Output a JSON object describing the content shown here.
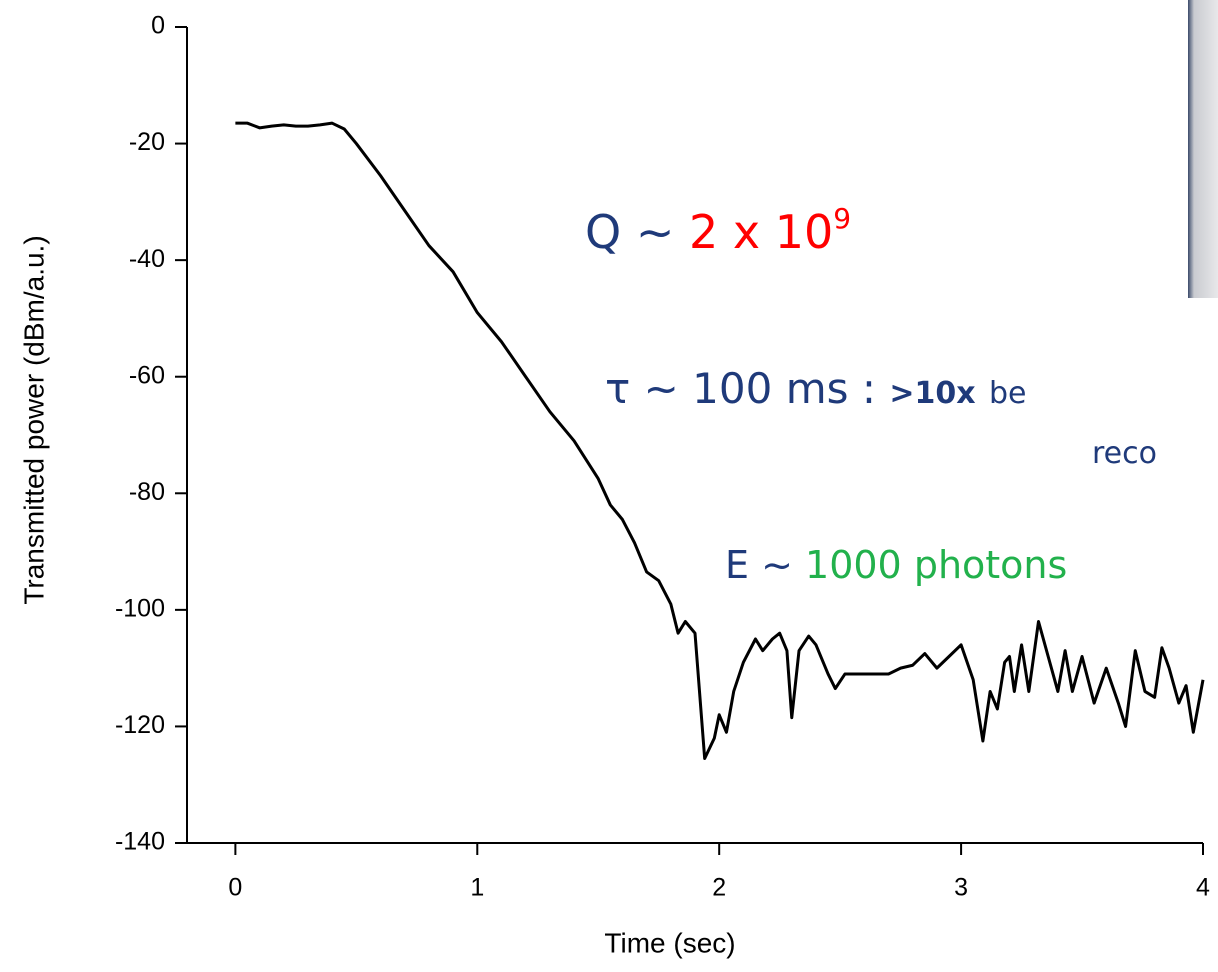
{
  "chart_data": {
    "type": "line",
    "x_label": "Time (sec)",
    "y_label": "Transmitted power (dBm/a.u.)",
    "xlim": [
      -0.2,
      4
    ],
    "ylim": [
      -140,
      0
    ],
    "xticks": [
      0,
      1,
      2,
      3,
      4
    ],
    "yticks": [
      0,
      -20,
      -40,
      -60,
      -80,
      -100,
      -120,
      -140
    ],
    "color": "#000000",
    "x": [
      0,
      0.05,
      0.1,
      0.15,
      0.2,
      0.25,
      0.3,
      0.35,
      0.4,
      0.45,
      0.5,
      0.6,
      0.7,
      0.8,
      0.9,
      1.0,
      1.1,
      1.2,
      1.3,
      1.4,
      1.5,
      1.55,
      1.6,
      1.65,
      1.7,
      1.75,
      1.8,
      1.83,
      1.86,
      1.9,
      1.94,
      1.98,
      2.0,
      2.03,
      2.06,
      2.1,
      2.15,
      2.18,
      2.22,
      2.25,
      2.28,
      2.3,
      2.33,
      2.37,
      2.4,
      2.45,
      2.48,
      2.52,
      2.6,
      2.7,
      2.75,
      2.8,
      2.85,
      2.9,
      2.95,
      3.0,
      3.05,
      3.09,
      3.12,
      3.15,
      3.18,
      3.2,
      3.22,
      3.25,
      3.28,
      3.32,
      3.36,
      3.4,
      3.43,
      3.46,
      3.5,
      3.55,
      3.6,
      3.65,
      3.68,
      3.72,
      3.76,
      3.8,
      3.83,
      3.86,
      3.9,
      3.93,
      3.96,
      4.0
    ],
    "values": [
      -16.5,
      -16.5,
      -17.3,
      -17,
      -16.8,
      -17,
      -17,
      -16.8,
      -16.5,
      -17.5,
      -20,
      -25.5,
      -31.5,
      -37.5,
      -42,
      -49,
      -54,
      -60,
      -66,
      -71,
      -77.5,
      -82,
      -84.5,
      -88.5,
      -93.5,
      -95,
      -99,
      -104,
      -102,
      -104,
      -125.5,
      -122,
      -118,
      -121,
      -114,
      -109,
      -105,
      -107,
      -105,
      -104,
      -107,
      -118.5,
      -107,
      -104.5,
      -106,
      -111,
      -113.5,
      -111,
      -111,
      -111,
      -110,
      -109.5,
      -107.5,
      -110,
      -108,
      -106,
      -112,
      -122.5,
      -114,
      -117,
      -109,
      -108,
      -114,
      -106,
      -114,
      -102,
      -108,
      -114,
      -107,
      -114,
      -108,
      -116,
      -110,
      -116,
      -120,
      -107,
      -114,
      -115,
      -106.5,
      -110,
      -116,
      -113,
      -121,
      -112
    ],
    "annotations": {
      "q": {
        "prefix": "Q ~",
        "value": "2 x 10",
        "exponent": "9"
      },
      "tau": {
        "prefix": "τ ~ 100 ms :",
        "bold": ">10x",
        "rest": "be",
        "line2": "reco"
      },
      "energy": {
        "prefix": "E ~",
        "value": "1000 photons"
      }
    }
  }
}
